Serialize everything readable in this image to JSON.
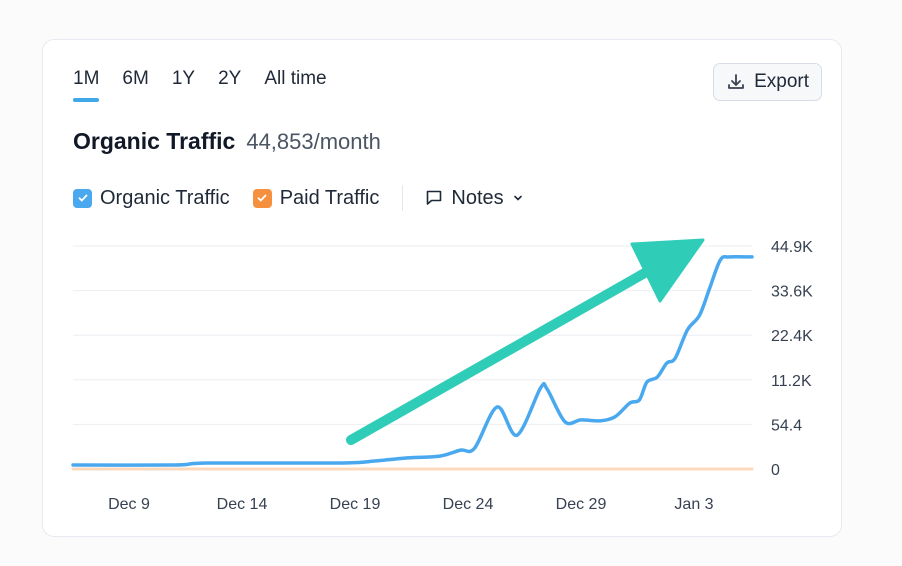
{
  "tabs": [
    "1M",
    "6M",
    "1Y",
    "2Y",
    "All time"
  ],
  "active_tab": "1M",
  "export_label": "Export",
  "title": "Organic Traffic",
  "subtitle": "44,853/month",
  "legend": [
    {
      "label": "Organic Traffic",
      "color": "#4aa8ef",
      "checked": true
    },
    {
      "label": "Paid Traffic",
      "color": "#f5913e",
      "checked": true
    }
  ],
  "notes_label": "Notes",
  "chart_data": {
    "type": "line",
    "x_tick_labels": [
      "Dec 9",
      "Dec 14",
      "Dec 19",
      "Dec 24",
      "Dec 29",
      "Jan 3"
    ],
    "y_tick_labels": [
      "0",
      "54.4",
      "11.2K",
      "22.4K",
      "33.6K",
      "44.9K"
    ],
    "ylim": [
      0,
      44900
    ],
    "grid": true,
    "y_axis_position": "right",
    "series": [
      {
        "name": "Organic Traffic",
        "color": "#4aa8ef",
        "points": [
          [
            "Dec 6 12:00",
            800
          ],
          [
            "Dec 11 00:00",
            800
          ],
          [
            "Dec 12 12:00",
            1200
          ],
          [
            "Dec 18 06:00",
            1200
          ],
          [
            "Dec 19 21:00",
            1600
          ],
          [
            "Dec 21 05:00",
            2200
          ],
          [
            "Dec 22 18:00",
            2600
          ],
          [
            "Dec 23 16:00",
            3800
          ],
          [
            "Dec 24 07:00",
            4200
          ],
          [
            "Dec 25 07:00",
            12500
          ],
          [
            "Dec 26 04:00",
            6800
          ],
          [
            "Dec 27 05:00",
            16300
          ],
          [
            "Dec 27 12:00",
            16100
          ],
          [
            "Dec 28 07:00",
            9500
          ],
          [
            "Dec 29 00:00",
            9900
          ],
          [
            "Dec 29 20:00",
            9700
          ],
          [
            "Dec 30 12:00",
            10500
          ],
          [
            "Dec 31 04:00",
            13300
          ],
          [
            "Dec 31 14:00",
            13900
          ],
          [
            "Dec 31 22:00",
            17500
          ],
          [
            "Jan 1 09:00",
            18500
          ],
          [
            "Jan 1 19:00",
            21300
          ],
          [
            "Jan 2 04:00",
            22300
          ],
          [
            "Jan 2 17:00",
            28000
          ],
          [
            "Jan 3 06:00",
            31000
          ],
          [
            "Jan 3 17:00",
            36600
          ],
          [
            "Jan 4 04:00",
            42100
          ],
          [
            "Jan 4 14:00",
            42700
          ],
          [
            "Jan 5 14:00",
            42700
          ]
        ]
      },
      {
        "name": "Paid Traffic",
        "color": "#fcd9bd",
        "points": [
          [
            "Dec 6 12:00",
            0
          ],
          [
            "Jan 5 14:00",
            0
          ]
        ]
      }
    ],
    "annotation": {
      "type": "trend-arrow",
      "color": "#2fcdb8"
    }
  }
}
